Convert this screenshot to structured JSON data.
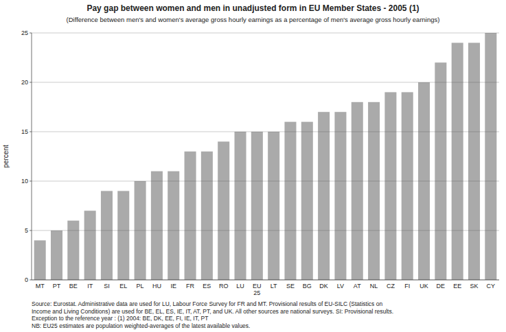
{
  "chart_data": {
    "type": "bar",
    "title": "Pay gap between women and men in unadjusted form in EU Member States - 2005 (1)",
    "subtitle": "(Difference between men's and women's average gross hourly earnings as a percentage of men's average gross hourly earnings)",
    "ylabel": "percent",
    "categories": [
      "MT",
      "PT",
      "BE",
      "IT",
      "SI",
      "EL",
      "PL",
      "HU",
      "IE",
      "FR",
      "ES",
      "RO",
      "LU",
      "EU\n25",
      "LT",
      "SE",
      "BG",
      "DK",
      "LV",
      "AT",
      "NL",
      "CZ",
      "FI",
      "UK",
      "DE",
      "EE",
      "SK",
      "CY"
    ],
    "values": [
      4,
      5,
      6,
      7,
      9,
      9,
      10,
      11,
      11,
      13,
      13,
      14,
      15,
      15,
      15,
      16,
      16,
      17,
      17,
      18,
      18,
      19,
      19,
      20,
      22,
      24,
      24,
      25
    ],
    "color": "#aaaaaa",
    "ylim": [
      0,
      25
    ],
    "yticks": [
      0,
      5,
      10,
      15,
      20,
      25
    ],
    "grid": true,
    "annotations": [
      "Source:  Eurostat. Administrative data are used for LU, Labour Force Survey for FR and MT. Provisional results of EU-SILC (Statistics on\nIncome and Living Conditions) are used for BE, EL, ES, IE, IT, AT, PT, and UK. All other sources are national surveys. SI: Provisional results.\nException to the reference year : (1) 2004: BE, DK, EE, FI, IE, IT, PT\nNB: EU25 estimates are population weighted-averages of the latest available values."
    ]
  }
}
